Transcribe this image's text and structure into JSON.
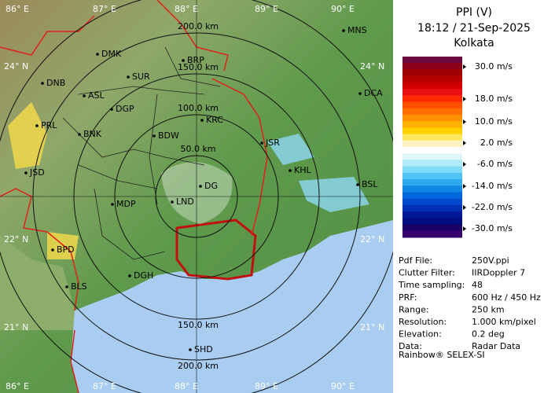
{
  "header": {
    "title": "PPI (V)",
    "time": "18:12 / 21-Sep-2025",
    "site": "Kolkata"
  },
  "legend": {
    "labels": [
      "30.0 m/s",
      "18.0 m/s",
      "10.0 m/s",
      "2.0 m/s",
      "-6.0 m/s",
      "-14.0 m/s",
      "-22.0 m/s",
      "-30.0 m/s"
    ]
  },
  "info": {
    "rows": [
      [
        "Pdf File:",
        "250V.ppi"
      ],
      [
        "Clutter Filter:",
        "IIRDoppler 7"
      ],
      [
        "Time sampling:",
        "48"
      ],
      [
        "PRF:",
        "600 Hz / 450 Hz"
      ],
      [
        "Range:",
        "250 km"
      ],
      [
        "Resolution:",
        "1.000 km/pixel"
      ],
      [
        "Elevation:",
        "0.2 deg"
      ],
      [
        "Data:",
        "Radar Data"
      ]
    ]
  },
  "footer": "Rainbow® SELEX-SI",
  "map": {
    "range_labels": [
      "50.0 km",
      "100.0 km",
      "150.0 km",
      "200.0 km"
    ],
    "lon_labels": [
      "86° E",
      "87° E",
      "88° E",
      "89° E",
      "90° E"
    ],
    "lat_labels": [
      "24° N",
      "22° N",
      "21° N"
    ],
    "cities": [
      "MNS",
      "DMK",
      "BRP",
      "DNB",
      "SUR",
      "ASL",
      "DGP",
      "DCA",
      "KRC",
      "PRL",
      "BNK",
      "BDW",
      "JSR",
      "KHL",
      "JSD",
      "BSL",
      "DG",
      "MDP",
      "LND",
      "BPD",
      "DGH",
      "BLS",
      "SHD"
    ]
  }
}
